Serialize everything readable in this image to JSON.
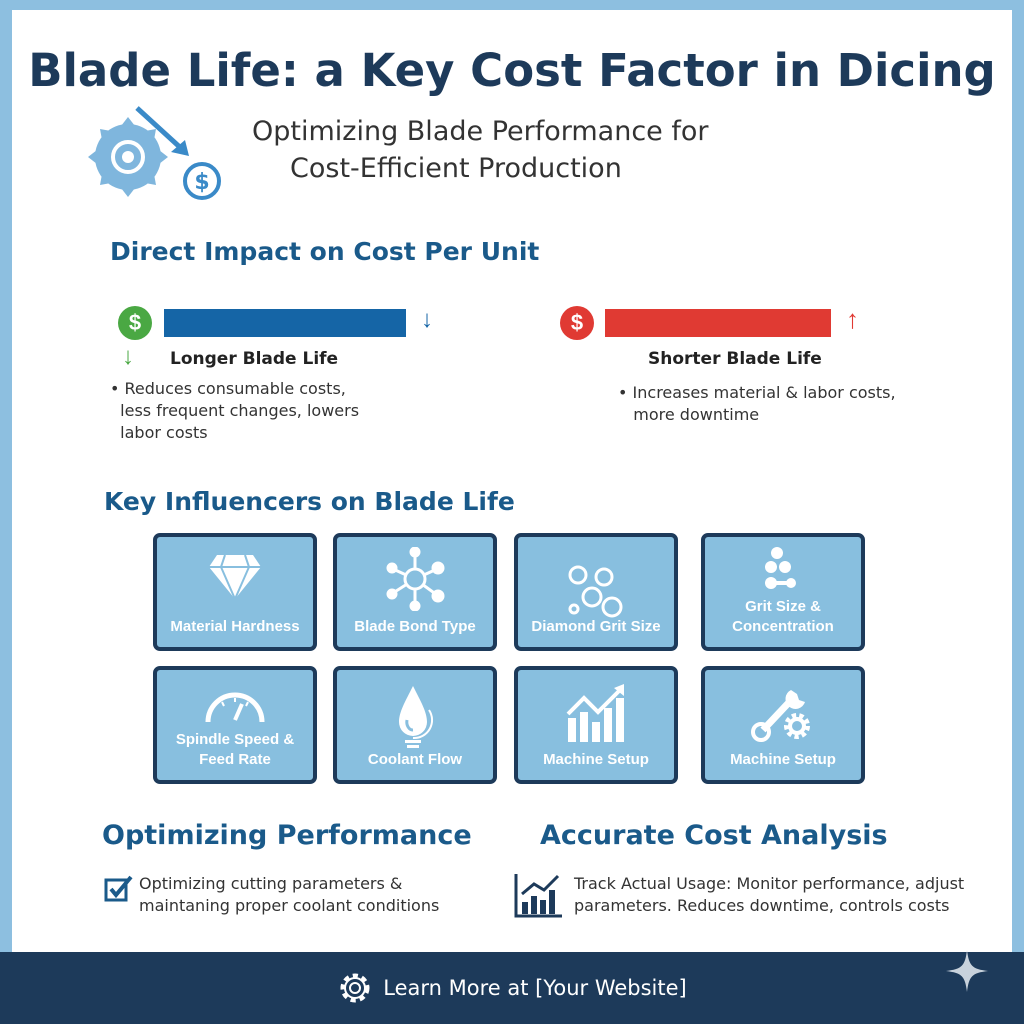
{
  "title": "Blade Life: a Key Cost Factor in Dicing",
  "subtitle": {
    "line1": "Optimizing Blade Performance for",
    "line2": "Cost-Efficient Production"
  },
  "direct_impact": {
    "heading": "Direct Impact on Cost Per Unit",
    "longer": {
      "label": "Longer Blade Life",
      "bullet": "Reduces consumable costs,",
      "bullet2": "less frequent changes, lowers",
      "bullet3": "labor costs",
      "color": "#1565a6"
    },
    "shorter": {
      "label": "Shorter Blade Life",
      "bullet": "Increases material & labor costs,",
      "bullet2": "more downtime",
      "color": "#e03a33"
    },
    "dollar": "$"
  },
  "influencers": {
    "heading": "Key Influencers on Blade Life",
    "cards": [
      {
        "l1": "Material Hardness",
        "l2": "",
        "icon": "diamond-icon"
      },
      {
        "l1": "Blade Bond Type",
        "l2": "",
        "icon": "molecule-icon"
      },
      {
        "l1": "Diamond Grit Size",
        "l2": "",
        "icon": "circles-icon"
      },
      {
        "l1": "Grit Size &",
        "l2": "Concentration",
        "icon": "dots-icon"
      },
      {
        "l1": "Spindle Speed &",
        "l2": "Feed Rate",
        "icon": "gauge-icon"
      },
      {
        "l1": "Coolant Flow",
        "l2": "",
        "icon": "droplet-icon"
      },
      {
        "l1": "Machine Setup",
        "l2": "",
        "icon": "growth-chart-icon"
      },
      {
        "l1": "Machine Setup",
        "l2": "",
        "icon": "wrench-gear-icon"
      }
    ]
  },
  "optimizing": {
    "heading": "Optimizing Performance",
    "l1": "Optimizing cutting parameters &",
    "l2": "maintaning proper coolant conditions"
  },
  "analysis": {
    "heading": "Accurate Cost Analysis",
    "l1": "Track Actual Usage: Monitor performance, adjust",
    "l2": "parameters. Reduces downtime, controls costs"
  },
  "footer": {
    "text": "Learn More at [Your Website]"
  }
}
